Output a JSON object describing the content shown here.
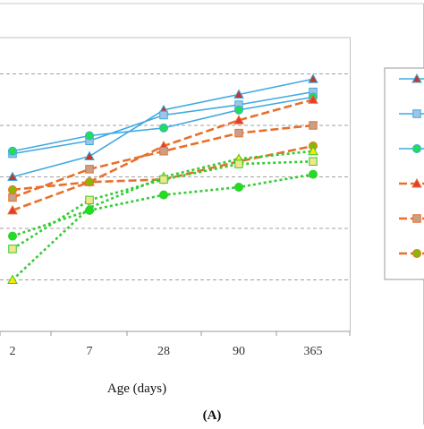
{
  "chart_data": {
    "type": "line",
    "title": "",
    "panel_label": "(A)",
    "xlabel": "Age (days)",
    "ylabel": "",
    "categories": [
      "2",
      "7",
      "28",
      "90",
      "365"
    ],
    "ylim": [
      0,
      6
    ],
    "grid": "horizontal-dashed",
    "legend_position": "right",
    "series": [
      {
        "color": "#3FA9E0",
        "dash": "solid",
        "marker": "triangle",
        "marker_fill": "#C0392B",
        "values": [
          3.0,
          3.4,
          4.3,
          4.6,
          4.9
        ]
      },
      {
        "color": "#3FA9E0",
        "dash": "solid",
        "marker": "square",
        "marker_fill": "#9EC5E8",
        "values": [
          3.45,
          3.7,
          4.2,
          4.4,
          4.65
        ]
      },
      {
        "color": "#3FA9E0",
        "dash": "solid",
        "marker": "circle",
        "marker_fill": "#22DD55",
        "values": [
          3.5,
          3.8,
          3.95,
          4.3,
          4.55
        ]
      },
      {
        "color": "#E8702A",
        "dash": "dashed",
        "marker": "triangle",
        "marker_fill": "#E53935",
        "values": [
          2.35,
          2.9,
          3.6,
          4.1,
          4.5
        ]
      },
      {
        "color": "#E8702A",
        "dash": "dashed",
        "marker": "square",
        "marker_fill": "#C8A08A",
        "values": [
          2.6,
          3.15,
          3.5,
          3.85,
          4.0
        ]
      },
      {
        "color": "#E8702A",
        "dash": "dashed",
        "marker": "circle",
        "marker_fill": "#8AB800",
        "values": [
          2.75,
          2.9,
          2.95,
          3.3,
          3.6
        ]
      },
      {
        "color": "#33CC33",
        "dash": "dotted",
        "marker": "triangle",
        "marker_fill": "#FFE600",
        "values": [
          1.0,
          2.4,
          3.0,
          3.35,
          3.5
        ]
      },
      {
        "color": "#33CC33",
        "dash": "dotted",
        "marker": "square",
        "marker_fill": "#F2E58A",
        "values": [
          1.6,
          2.55,
          2.95,
          3.25,
          3.3
        ]
      },
      {
        "color": "#33CC33",
        "dash": "dotted",
        "marker": "circle",
        "marker_fill": "#22DD22",
        "values": [
          1.85,
          2.35,
          2.65,
          2.8,
          3.05
        ]
      }
    ],
    "legend_items": [
      {
        "color": "#3FA9E0",
        "dash": "solid",
        "marker": "triangle",
        "marker_fill": "#C0392B"
      },
      {
        "color": "#3FA9E0",
        "dash": "solid",
        "marker": "square",
        "marker_fill": "#9EC5E8"
      },
      {
        "color": "#3FA9E0",
        "dash": "solid",
        "marker": "circle",
        "marker_fill": "#22DD55"
      },
      {
        "color": "#E8702A",
        "dash": "dashed",
        "marker": "triangle",
        "marker_fill": "#E53935"
      },
      {
        "color": "#E8702A",
        "dash": "dashed",
        "marker": "square",
        "marker_fill": "#C8A08A"
      },
      {
        "color": "#E8702A",
        "dash": "dashed",
        "marker": "circle",
        "marker_fill": "#8AB800"
      }
    ]
  }
}
